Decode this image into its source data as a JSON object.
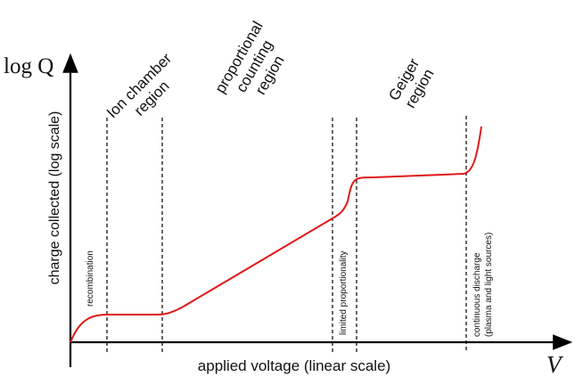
{
  "axes": {
    "y_symbol": "log Q",
    "y_label": "charge collected (log scale)",
    "x_label": "applied voltage (linear scale)",
    "x_symbol": "V"
  },
  "regions": {
    "ion_chamber": [
      "Ion chamber",
      "region"
    ],
    "proportional": [
      "proportional",
      "counting",
      "region"
    ],
    "geiger": [
      "Geiger",
      "region"
    ]
  },
  "annotations": {
    "recombination": "recombination",
    "limited_proportionality": "limited proportionality",
    "continuous_discharge": [
      "continuous discharge",
      "(plasma and light sources)"
    ]
  },
  "colors": {
    "curve": "#e01818",
    "axis": "#000000"
  }
}
